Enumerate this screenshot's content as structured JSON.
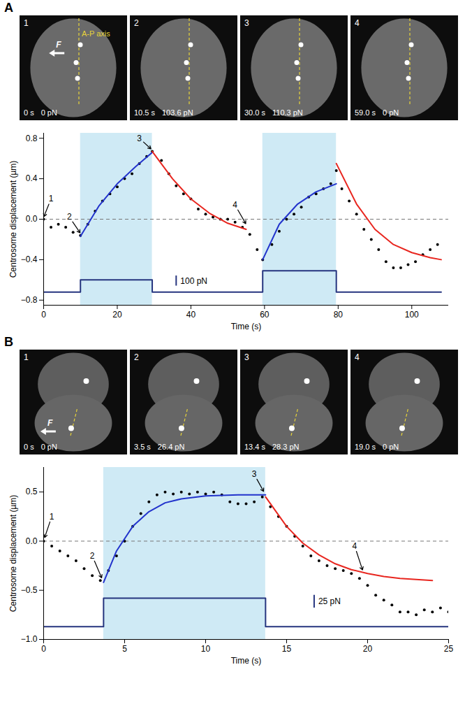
{
  "chart_data": [
    {
      "panel": "A",
      "type": "line",
      "images": [
        {
          "label": "1",
          "time": "0 s",
          "force": "0 pN"
        },
        {
          "label": "2",
          "time": "10.5 s",
          "force": "103.6 pN"
        },
        {
          "label": "3",
          "time": "30.0 s",
          "force": "110.3 pN"
        },
        {
          "label": "4",
          "time": "59.0 s",
          "force": "0 pN"
        }
      ],
      "image_annotations": {
        "force_label": "F",
        "axis_label": "A-P axis"
      },
      "x_label": "Time (s)",
      "y_label": "Centrosome displacement (µm)",
      "xlim": [
        0,
        110
      ],
      "xticks": [
        0,
        20,
        40,
        60,
        80,
        100
      ],
      "ylim": [
        -0.85,
        0.85
      ],
      "yticks": [
        -0.8,
        -0.4,
        0,
        0.4,
        0.8
      ],
      "reference_line": 0,
      "highlight": {
        "color": "#cfeaf5",
        "ranges": [
          [
            10,
            29.5
          ],
          [
            59.5,
            79.5
          ]
        ]
      },
      "series": [
        {
          "type": "scatter",
          "marker": "circle",
          "color": "#000000",
          "x": [
            0,
            2,
            4,
            6,
            8,
            10,
            12,
            14,
            16,
            18,
            20,
            22,
            24,
            26,
            28,
            29.5,
            32,
            34,
            36,
            38,
            40,
            42,
            44,
            46,
            48,
            50,
            52,
            54,
            56,
            58,
            59.5,
            62,
            64,
            66,
            68,
            70,
            72,
            74,
            76,
            78,
            79.5,
            81,
            83,
            85,
            87,
            89,
            91,
            93,
            95,
            97,
            99,
            101,
            103,
            105,
            107
          ],
          "values": [
            0,
            -0.08,
            -0.05,
            -0.08,
            -0.13,
            -0.16,
            -0.05,
            0.08,
            0.18,
            0.25,
            0.32,
            0.4,
            0.45,
            0.55,
            0.62,
            0.67,
            0.58,
            0.45,
            0.33,
            0.25,
            0.2,
            0.1,
            0.05,
            0.02,
            0,
            0,
            -0.03,
            -0.08,
            -0.15,
            -0.3,
            -0.4,
            -0.25,
            -0.12,
            0,
            0.05,
            0.12,
            0.22,
            0.25,
            0.3,
            0.35,
            0.48,
            0.3,
            0.18,
            0.05,
            -0.1,
            -0.2,
            -0.3,
            -0.42,
            -0.48,
            -0.48,
            -0.45,
            -0.42,
            -0.35,
            -0.3,
            -0.25
          ]
        },
        {
          "type": "line",
          "line_style": "solid",
          "color": "#2233cc",
          "x": [
            10,
            15,
            20,
            25,
            29.5
          ],
          "values": [
            -0.17,
            0.13,
            0.35,
            0.52,
            0.66
          ]
        },
        {
          "type": "line",
          "line_style": "solid",
          "color": "#e8261f",
          "x": [
            29.5,
            35,
            40,
            45,
            50,
            55
          ],
          "values": [
            0.67,
            0.4,
            0.2,
            0.06,
            -0.04,
            -0.1
          ]
        },
        {
          "type": "line",
          "line_style": "solid",
          "color": "#2233cc",
          "x": [
            59.5,
            64,
            69,
            74,
            79.5
          ],
          "values": [
            -0.4,
            -0.05,
            0.15,
            0.27,
            0.35
          ]
        },
        {
          "type": "line",
          "line_style": "solid",
          "color": "#e8261f",
          "x": [
            79.5,
            85,
            90,
            95,
            100,
            105,
            108
          ],
          "values": [
            0.55,
            0.15,
            -0.1,
            -0.25,
            -0.33,
            -0.38,
            -0.4
          ]
        },
        {
          "type": "line",
          "line_style": "step",
          "color": "#26357f",
          "x": [
            0,
            10,
            29.5,
            59.5,
            79.5,
            108
          ],
          "values": [
            -0.72,
            -0.6,
            -0.72,
            -0.51,
            -0.72,
            -0.72
          ]
        }
      ],
      "scale_bar": {
        "label": "100 pN",
        "x": 36,
        "y0": -0.66,
        "y1": -0.56,
        "color": "#26357f"
      },
      "annotations": [
        {
          "label": "1",
          "x": 2,
          "y": 0.2,
          "target_x": 0,
          "target_y": 0.02
        },
        {
          "label": "2",
          "x": 7,
          "y": 0.02,
          "target_x": 10,
          "target_y": -0.14
        },
        {
          "label": "3",
          "x": 26,
          "y": 0.8,
          "target_x": 29.3,
          "target_y": 0.69
        },
        {
          "label": "4",
          "x": 52,
          "y": 0.14,
          "target_x": 55,
          "target_y": -0.05
        }
      ]
    },
    {
      "panel": "B",
      "type": "line",
      "images": [
        {
          "label": "1",
          "time": "0 s",
          "force": "0 pN"
        },
        {
          "label": "2",
          "time": "3.5 s",
          "force": "26.4 pN"
        },
        {
          "label": "3",
          "time": "13.4 s",
          "force": "28.3 pN"
        },
        {
          "label": "4",
          "time": "19.0 s",
          "force": "0 pN"
        }
      ],
      "image_annotations": {
        "force_label": "F"
      },
      "x_label": "Time (s)",
      "y_label": "Centrosome displacement (µm)",
      "xlim": [
        0,
        25
      ],
      "xticks": [
        0,
        5,
        10,
        15,
        20,
        25
      ],
      "ylim": [
        -1,
        0.75
      ],
      "yticks": [
        -1,
        -0.5,
        0,
        0.5
      ],
      "reference_line": 0,
      "highlight": {
        "color": "#cfeaf5",
        "ranges": [
          [
            3.7,
            13.7
          ]
        ]
      },
      "series": [
        {
          "type": "scatter",
          "marker": "circle",
          "color": "#000000",
          "x": [
            0,
            0.5,
            1,
            1.5,
            2,
            2.5,
            3,
            3.5,
            4,
            4.5,
            5,
            5.5,
            6,
            6.5,
            7,
            7.5,
            8,
            8.5,
            9,
            9.5,
            10,
            10.5,
            11,
            11.5,
            12,
            12.5,
            13,
            13.5,
            14,
            14.5,
            15,
            15.5,
            16,
            16.5,
            17,
            17.5,
            18,
            18.5,
            19,
            19.5,
            20,
            20.5,
            21,
            21.5,
            22,
            22.5,
            23,
            23.5,
            24,
            24.5,
            25
          ],
          "values": [
            0,
            -0.05,
            -0.1,
            -0.15,
            -0.2,
            -0.28,
            -0.35,
            -0.4,
            -0.3,
            -0.15,
            0,
            0.15,
            0.28,
            0.4,
            0.47,
            0.5,
            0.48,
            0.5,
            0.48,
            0.5,
            0.48,
            0.5,
            0.47,
            0.4,
            0.38,
            0.38,
            0.4,
            0.45,
            0.35,
            0.25,
            0.15,
            0.05,
            -0.05,
            -0.15,
            -0.2,
            -0.25,
            -0.28,
            -0.3,
            -0.33,
            -0.38,
            -0.45,
            -0.55,
            -0.6,
            -0.65,
            -0.72,
            -0.72,
            -0.75,
            -0.7,
            -0.72,
            -0.68,
            -0.72
          ]
        },
        {
          "type": "line",
          "line_style": "solid",
          "color": "#2233cc",
          "x": [
            3.7,
            4.5,
            5.5,
            6.5,
            7.5,
            8.5,
            10,
            12,
            13.7
          ],
          "values": [
            -0.42,
            -0.1,
            0.15,
            0.3,
            0.39,
            0.43,
            0.46,
            0.47,
            0.47
          ]
        },
        {
          "type": "line",
          "line_style": "solid",
          "color": "#e8261f",
          "x": [
            13.7,
            15,
            16,
            17,
            18,
            19,
            20,
            21,
            22,
            23,
            24
          ],
          "values": [
            0.45,
            0.15,
            -0.02,
            -0.14,
            -0.23,
            -0.29,
            -0.33,
            -0.36,
            -0.38,
            -0.39,
            -0.4
          ]
        },
        {
          "type": "line",
          "line_style": "step",
          "color": "#26357f",
          "x": [
            0,
            3.7,
            13.7,
            25
          ],
          "values": [
            -0.87,
            -0.58,
            -0.87,
            -0.87
          ]
        }
      ],
      "scale_bar": {
        "label": "25 pN",
        "x": 16.7,
        "y0": -0.68,
        "y1": -0.55,
        "color": "#26357f"
      },
      "annotations": [
        {
          "label": "1",
          "x": 0.5,
          "y": 0.25,
          "target_x": 0.05,
          "target_y": 0.03
        },
        {
          "label": "2",
          "x": 3,
          "y": -0.15,
          "target_x": 3.6,
          "target_y": -0.38
        },
        {
          "label": "3",
          "x": 13,
          "y": 0.68,
          "target_x": 13.6,
          "target_y": 0.5
        },
        {
          "label": "4",
          "x": 19.2,
          "y": -0.05,
          "target_x": 19.7,
          "target_y": -0.3
        }
      ]
    }
  ]
}
